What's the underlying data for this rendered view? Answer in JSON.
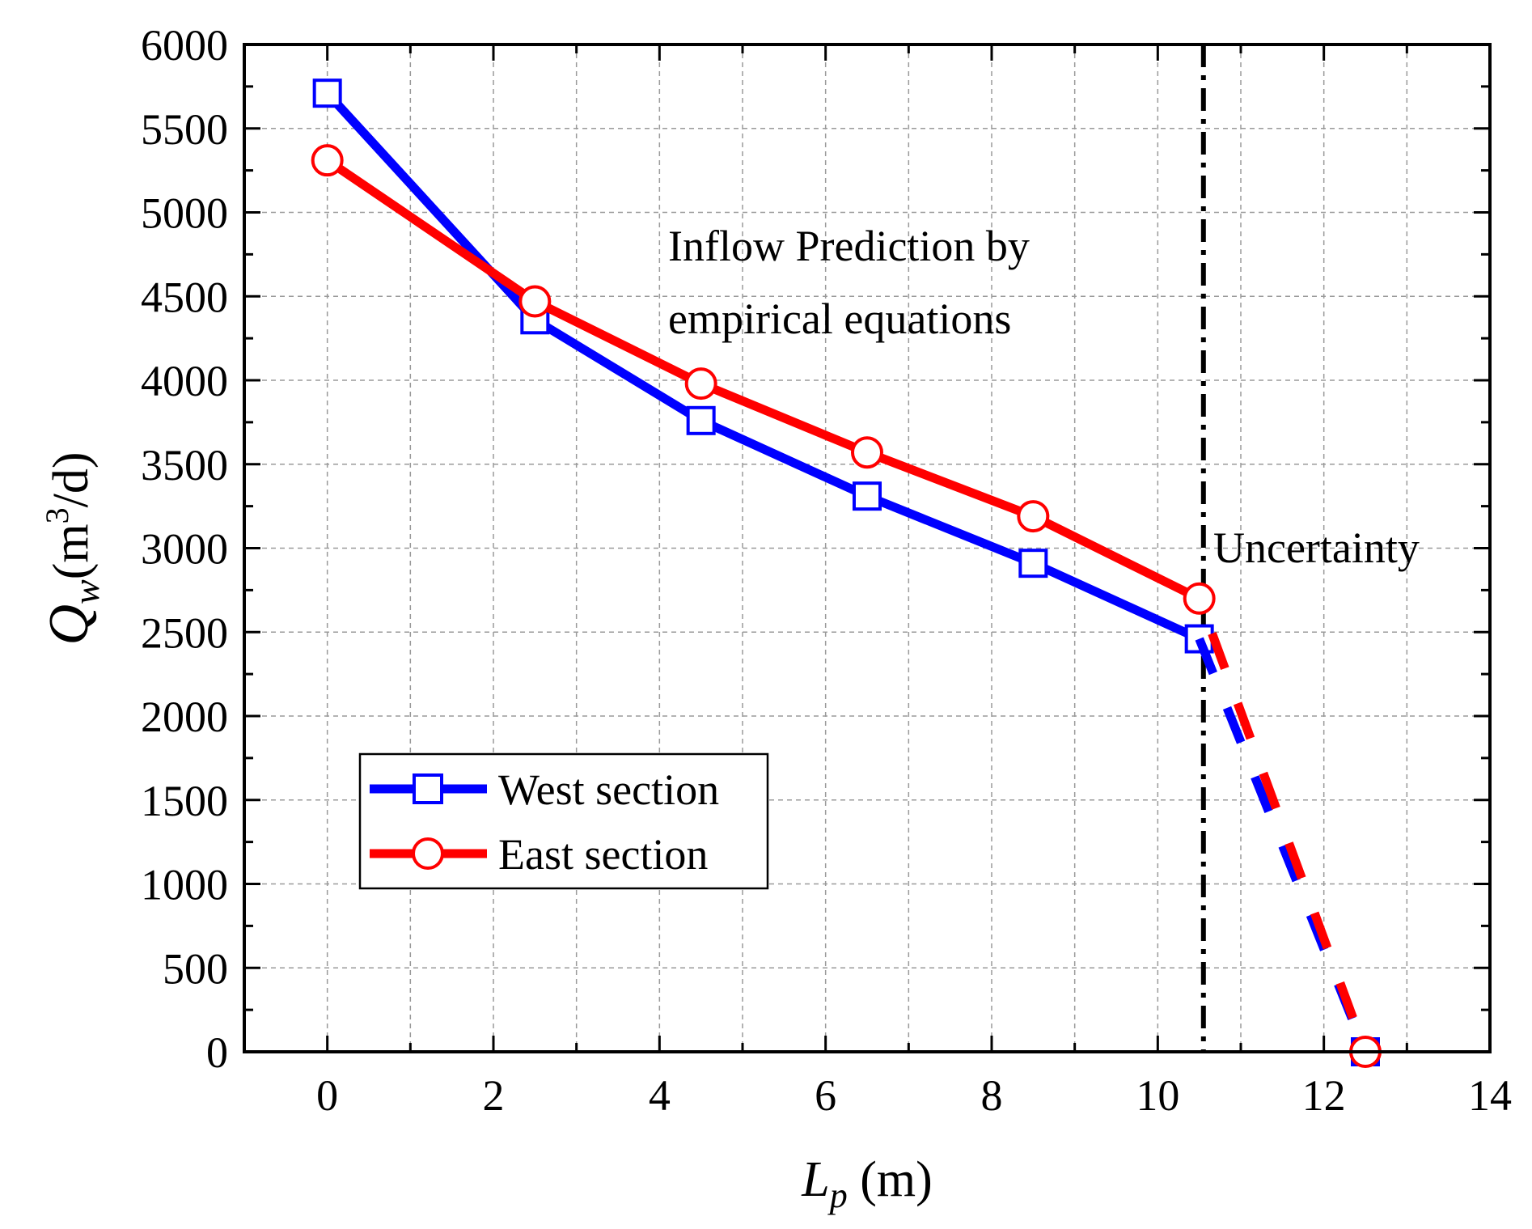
{
  "chart_data": {
    "type": "line",
    "title": "",
    "xlabel": {
      "main": "L",
      "sub": "p",
      "unit": " (m)"
    },
    "ylabel": {
      "main": "Q",
      "sub": "w",
      "unit_open": "(m",
      "unit_sup": "3",
      "unit_close": "/d)"
    },
    "xlim": [
      -1,
      14
    ],
    "ylim": [
      0,
      6000
    ],
    "x_ticks": [
      0,
      2,
      4,
      6,
      8,
      10,
      12,
      14
    ],
    "y_ticks": [
      0,
      500,
      1000,
      1500,
      2000,
      2500,
      3000,
      3500,
      4000,
      4500,
      5000,
      5500,
      6000
    ],
    "grid": true,
    "series": [
      {
        "name": "West section",
        "color": "#0000ff",
        "marker": "square",
        "x": [
          0,
          2.5,
          4.5,
          6.5,
          8.5,
          10.5
        ],
        "y": [
          5710,
          4360,
          3760,
          3310,
          2910,
          2460
        ],
        "extrapolation": {
          "x": [
            10.5,
            12.5
          ],
          "y": [
            2460,
            0
          ]
        }
      },
      {
        "name": "East section",
        "color": "#ff0000",
        "marker": "circle",
        "x": [
          0,
          2.5,
          4.5,
          6.5,
          8.5,
          10.5
        ],
        "y": [
          5310,
          4470,
          3980,
          3570,
          3190,
          2700
        ],
        "extrapolation": {
          "x": [
            10.5,
            12.5
          ],
          "y": [
            2700,
            0
          ]
        }
      }
    ],
    "vertical_line": {
      "x": 10.55,
      "style": "dash-dot"
    },
    "annotations": {
      "prediction_line1": "Inflow Prediction by",
      "prediction_line2": "empirical equations",
      "uncertainty": "Uncertainty"
    },
    "legend_position": "lower-left"
  }
}
